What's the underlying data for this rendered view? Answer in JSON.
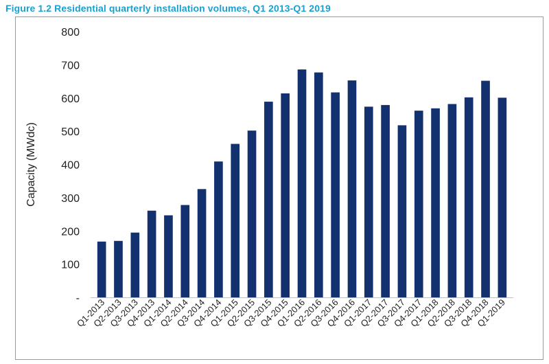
{
  "title": "Figure 1.2 Residential quarterly installation volumes, Q1 2013-Q1 2019",
  "chart_data": {
    "type": "bar",
    "title": "Figure 1.2 Residential quarterly installation volumes, Q1 2013-Q1 2019",
    "xlabel": "",
    "ylabel": "Capacity (MWdc)",
    "ylim": [
      0,
      800
    ],
    "yticks": [
      0,
      100,
      200,
      300,
      400,
      500,
      600,
      700,
      800
    ],
    "ytick_labels": [
      "-",
      "100",
      "200",
      "300",
      "400",
      "500",
      "600",
      "700",
      "800"
    ],
    "bar_color": "#13306f",
    "grid": false,
    "categories": [
      "Q1-2013",
      "Q2-2013",
      "Q3-2013",
      "Q4-2013",
      "Q1-2014",
      "Q2-2014",
      "Q3-2014",
      "Q4-2014",
      "Q1-2015",
      "Q2-2015",
      "Q3-2015",
      "Q4-2015",
      "Q1-2016",
      "Q2-2016",
      "Q3-2016",
      "Q4-2016",
      "Q1-2017",
      "Q2-2017",
      "Q3-2017",
      "Q4-2017",
      "Q1-2018",
      "Q2-2018",
      "Q3-2018",
      "Q4-2018",
      "Q1-2019"
    ],
    "values": [
      168,
      170,
      195,
      261,
      247,
      278,
      326,
      409,
      462,
      502,
      589,
      614,
      686,
      677,
      617,
      653,
      574,
      579,
      518,
      562,
      569,
      582,
      602,
      652,
      601
    ]
  }
}
